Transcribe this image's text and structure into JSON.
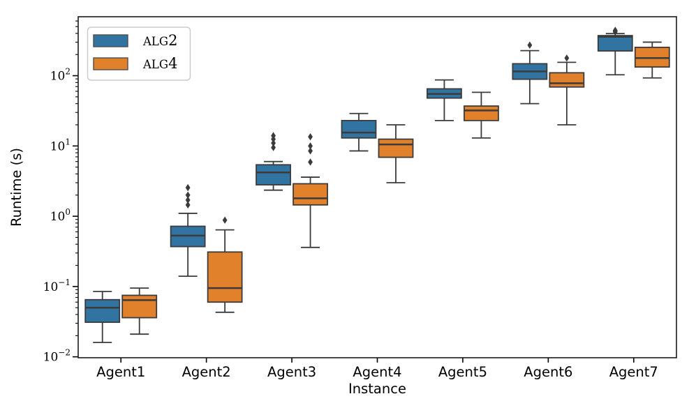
{
  "figure": {
    "xlabel": "Instance",
    "ylabel": "Runtime (s)"
  },
  "legend": {
    "items": [
      {
        "label": "ALG2",
        "color": "#3274a1"
      },
      {
        "label": "ALG4",
        "color": "#e1812c"
      }
    ]
  },
  "chart_data": {
    "type": "boxplot",
    "yscale": "log",
    "ylim": [
      0.0097,
      690
    ],
    "ytick_exponents": [
      2,
      1,
      0,
      -1,
      -2
    ],
    "grid": false,
    "legend_position": "upper-left",
    "xlabel": "Instance",
    "ylabel": "Runtime (s)",
    "categories": [
      "Agent1",
      "Agent2",
      "Agent3",
      "Agent4",
      "Agent5",
      "Agent6",
      "Agent7"
    ],
    "edge_color": "#3b3b3b",
    "series": [
      {
        "name": "ALG2",
        "color": "#3274a1",
        "boxes": [
          {
            "whislo": 0.016,
            "q1": 0.031,
            "med": 0.05,
            "q3": 0.065,
            "whishi": 0.085,
            "fliers": []
          },
          {
            "whislo": 0.14,
            "q1": 0.37,
            "med": 0.53,
            "q3": 0.72,
            "whishi": 1.1,
            "fliers": [
              1.45,
              1.7,
              2.0,
              2.55
            ]
          },
          {
            "whislo": 2.35,
            "q1": 2.8,
            "med": 4.2,
            "q3": 5.4,
            "whishi": 6.0,
            "fliers": [
              9.5,
              11,
              12.5,
              14
            ]
          },
          {
            "whislo": 8.5,
            "q1": 13,
            "med": 15.5,
            "q3": 23,
            "whishi": 29,
            "fliers": []
          },
          {
            "whislo": 23,
            "q1": 48,
            "med": 55,
            "q3": 65,
            "whishi": 87,
            "fliers": []
          },
          {
            "whislo": 40,
            "q1": 89,
            "med": 115,
            "q3": 148,
            "whishi": 227,
            "fliers": [
              272
            ]
          },
          {
            "whislo": 103,
            "q1": 225,
            "med": 358,
            "q3": 372,
            "whishi": 397,
            "fliers": [
              420,
              432,
              442
            ]
          }
        ]
      },
      {
        "name": "ALG4",
        "color": "#e1812c",
        "boxes": [
          {
            "whislo": 0.021,
            "q1": 0.036,
            "med": 0.064,
            "q3": 0.075,
            "whishi": 0.095,
            "fliers": []
          },
          {
            "whislo": 0.043,
            "q1": 0.06,
            "med": 0.095,
            "q3": 0.31,
            "whishi": 0.64,
            "fliers": [
              0.88
            ]
          },
          {
            "whislo": 0.36,
            "q1": 1.45,
            "med": 1.8,
            "q3": 2.9,
            "whishi": 3.6,
            "fliers": [
              5.9,
              8.5,
              10,
              13.5
            ]
          },
          {
            "whislo": 3.0,
            "q1": 6.9,
            "med": 10.5,
            "q3": 12.5,
            "whishi": 20,
            "fliers": []
          },
          {
            "whislo": 13,
            "q1": 23,
            "med": 32,
            "q3": 37,
            "whishi": 58,
            "fliers": []
          },
          {
            "whislo": 20,
            "q1": 69,
            "med": 78,
            "q3": 110,
            "whishi": 155,
            "fliers": [
              178
            ]
          },
          {
            "whislo": 93,
            "q1": 133,
            "med": 178,
            "q3": 253,
            "whishi": 300,
            "fliers": []
          }
        ]
      }
    ]
  }
}
